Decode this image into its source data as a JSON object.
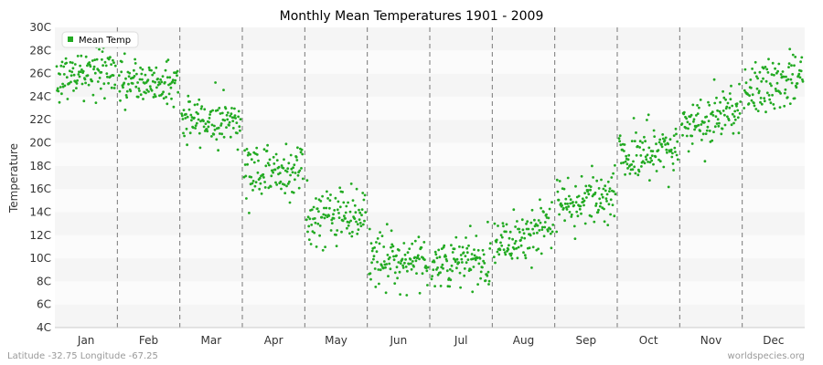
{
  "chart_data": {
    "type": "scatter",
    "title": "Monthly Mean Temperatures 1901 - 2009",
    "ylabel": "Temperature",
    "xlabel": "",
    "categories": [
      "Jan",
      "Feb",
      "Mar",
      "Apr",
      "May",
      "Jun",
      "Jul",
      "Aug",
      "Sep",
      "Oct",
      "Nov",
      "Dec"
    ],
    "yticks": [
      "4C",
      "6C",
      "8C",
      "10C",
      "12C",
      "14C",
      "16C",
      "18C",
      "20C",
      "22C",
      "24C",
      "26C",
      "28C",
      "30C"
    ],
    "ylim": [
      4,
      30
    ],
    "grid": "horizontal bands with dashed month separators",
    "legend_position": "top-left",
    "series": [
      {
        "name": "Mean Temp",
        "color": "#22aa22",
        "month_mean": [
          26.0,
          25.2,
          22.0,
          17.6,
          13.8,
          9.9,
          9.6,
          12.1,
          15.2,
          19.1,
          22.2,
          25.0
        ],
        "month_spread": [
          1.1,
          1.0,
          1.0,
          1.3,
          1.2,
          1.2,
          1.2,
          1.2,
          1.2,
          1.1,
          1.1,
          1.1
        ],
        "month_trend": [
          0.8,
          0.0,
          0.0,
          0.0,
          0.6,
          0.0,
          0.4,
          1.2,
          1.4,
          0.8,
          1.8,
          1.2
        ]
      }
    ],
    "years": [
      1901,
      2009
    ]
  },
  "footer": {
    "left": "Latitude -32.75 Longitude -67.25",
    "right": "worldspecies.org"
  }
}
